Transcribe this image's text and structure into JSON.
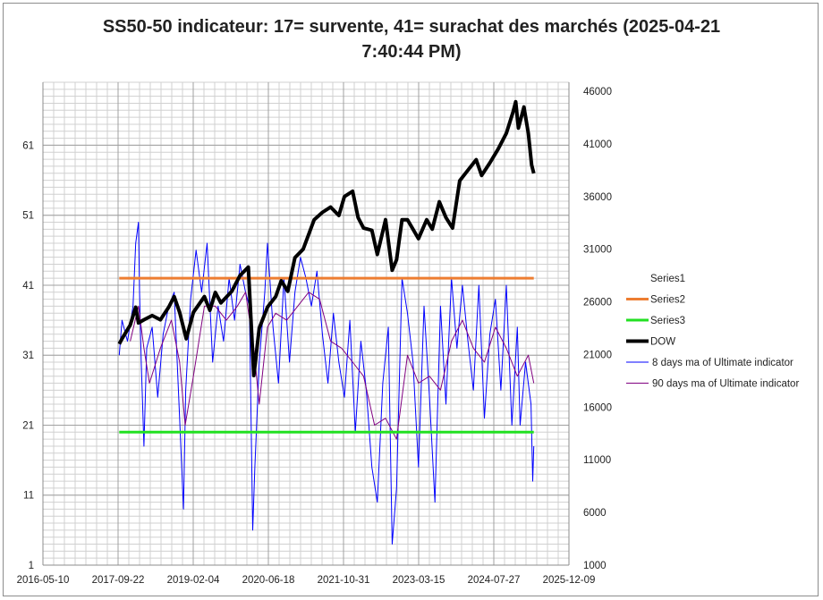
{
  "chart_data": {
    "type": "line",
    "title": "SS50-50 indicateur: 17= survente, 41= surachat des marchés (2025-04-21 7:40:44 PM)",
    "x_unit": "decimal year",
    "xlim": [
      2016.36,
      2025.94
    ],
    "x_tick_labels": [
      "2016-05-10",
      "2017-09-22",
      "2019-02-04",
      "2020-06-18",
      "2021-10-31",
      "2023-03-15",
      "2024-07-27",
      "2025-12-09"
    ],
    "y_left": {
      "ylim": [
        1,
        70
      ],
      "ticks": [
        1,
        11,
        21,
        31,
        41,
        51,
        61
      ]
    },
    "y_right": {
      "ylim": [
        1000,
        46850
      ],
      "ticks": [
        1000,
        6000,
        11000,
        16000,
        21000,
        26000,
        31000,
        36000,
        41000,
        46000
      ]
    },
    "grid": true,
    "legend_placement": "right",
    "series": [
      {
        "name": "Series1",
        "axis": "left",
        "color": "",
        "points": []
      },
      {
        "name": "Series2",
        "axis": "left",
        "color": "#ed7d31",
        "width": 3,
        "points": [
          [
            2017.75,
            42
          ],
          [
            2025.3,
            42
          ]
        ]
      },
      {
        "name": "Series3",
        "axis": "left",
        "color": "#22e022",
        "width": 3,
        "points": [
          [
            2017.75,
            20
          ],
          [
            2025.3,
            20
          ]
        ]
      },
      {
        "name": "DOW",
        "axis": "right",
        "color": "#000000",
        "width": 4,
        "points": [
          [
            2017.75,
            22000
          ],
          [
            2017.8,
            22500
          ],
          [
            2017.95,
            23800
          ],
          [
            2018.05,
            25500
          ],
          [
            2018.1,
            24000
          ],
          [
            2018.2,
            24300
          ],
          [
            2018.35,
            24700
          ],
          [
            2018.5,
            24300
          ],
          [
            2018.65,
            25500
          ],
          [
            2018.75,
            26500
          ],
          [
            2018.85,
            25000
          ],
          [
            2018.97,
            22500
          ],
          [
            2019.1,
            25000
          ],
          [
            2019.3,
            26500
          ],
          [
            2019.4,
            25200
          ],
          [
            2019.5,
            26900
          ],
          [
            2019.6,
            25900
          ],
          [
            2019.8,
            27000
          ],
          [
            2019.95,
            28500
          ],
          [
            2020.1,
            29300
          ],
          [
            2020.2,
            19000
          ],
          [
            2020.3,
            23500
          ],
          [
            2020.45,
            25500
          ],
          [
            2020.6,
            26500
          ],
          [
            2020.7,
            28000
          ],
          [
            2020.82,
            27000
          ],
          [
            2020.95,
            30200
          ],
          [
            2021.1,
            31000
          ],
          [
            2021.3,
            33800
          ],
          [
            2021.45,
            34500
          ],
          [
            2021.6,
            35000
          ],
          [
            2021.75,
            34200
          ],
          [
            2021.85,
            36000
          ],
          [
            2022.0,
            36500
          ],
          [
            2022.1,
            34000
          ],
          [
            2022.2,
            33000
          ],
          [
            2022.35,
            32800
          ],
          [
            2022.45,
            30500
          ],
          [
            2022.6,
            33800
          ],
          [
            2022.72,
            29000
          ],
          [
            2022.8,
            30000
          ],
          [
            2022.9,
            33800
          ],
          [
            2023.0,
            33800
          ],
          [
            2023.2,
            32000
          ],
          [
            2023.35,
            33800
          ],
          [
            2023.45,
            32900
          ],
          [
            2023.58,
            35500
          ],
          [
            2023.7,
            34000
          ],
          [
            2023.82,
            33000
          ],
          [
            2023.95,
            37500
          ],
          [
            2024.1,
            38500
          ],
          [
            2024.25,
            39500
          ],
          [
            2024.35,
            38000
          ],
          [
            2024.5,
            39200
          ],
          [
            2024.65,
            40500
          ],
          [
            2024.8,
            42000
          ],
          [
            2024.92,
            44000
          ],
          [
            2024.97,
            45000
          ],
          [
            2025.02,
            42500
          ],
          [
            2025.12,
            44500
          ],
          [
            2025.2,
            42000
          ],
          [
            2025.26,
            39000
          ],
          [
            2025.3,
            38200
          ]
        ]
      },
      {
        "name": "8 days ma of Ultimate indicator",
        "axis": "left",
        "color": "#0000ff",
        "width": 1,
        "points": [
          [
            2017.75,
            31
          ],
          [
            2017.8,
            36
          ],
          [
            2017.9,
            33
          ],
          [
            2018.0,
            38
          ],
          [
            2018.05,
            47
          ],
          [
            2018.1,
            50
          ],
          [
            2018.12,
            40
          ],
          [
            2018.15,
            30
          ],
          [
            2018.2,
            18
          ],
          [
            2018.25,
            32
          ],
          [
            2018.35,
            35
          ],
          [
            2018.45,
            25
          ],
          [
            2018.55,
            34
          ],
          [
            2018.65,
            38
          ],
          [
            2018.75,
            40
          ],
          [
            2018.85,
            22
          ],
          [
            2018.92,
            9
          ],
          [
            2018.96,
            26
          ],
          [
            2019.05,
            39
          ],
          [
            2019.15,
            46
          ],
          [
            2019.25,
            40
          ],
          [
            2019.35,
            47
          ],
          [
            2019.45,
            30
          ],
          [
            2019.55,
            38
          ],
          [
            2019.65,
            33
          ],
          [
            2019.75,
            42
          ],
          [
            2019.85,
            36
          ],
          [
            2019.95,
            44
          ],
          [
            2020.05,
            40
          ],
          [
            2020.12,
            38
          ],
          [
            2020.18,
            6
          ],
          [
            2020.22,
            15
          ],
          [
            2020.3,
            30
          ],
          [
            2020.4,
            40
          ],
          [
            2020.45,
            47
          ],
          [
            2020.55,
            35
          ],
          [
            2020.65,
            27
          ],
          [
            2020.75,
            42
          ],
          [
            2020.85,
            30
          ],
          [
            2020.95,
            40
          ],
          [
            2021.05,
            45
          ],
          [
            2021.15,
            42
          ],
          [
            2021.25,
            38
          ],
          [
            2021.35,
            43
          ],
          [
            2021.45,
            34
          ],
          [
            2021.55,
            27
          ],
          [
            2021.65,
            37
          ],
          [
            2021.75,
            30
          ],
          [
            2021.85,
            25
          ],
          [
            2021.95,
            36
          ],
          [
            2022.05,
            20
          ],
          [
            2022.15,
            33
          ],
          [
            2022.25,
            26
          ],
          [
            2022.35,
            15
          ],
          [
            2022.45,
            10
          ],
          [
            2022.55,
            27
          ],
          [
            2022.65,
            35
          ],
          [
            2022.72,
            4
          ],
          [
            2022.8,
            12
          ],
          [
            2022.9,
            42
          ],
          [
            2023.0,
            37
          ],
          [
            2023.1,
            30
          ],
          [
            2023.2,
            15
          ],
          [
            2023.3,
            38
          ],
          [
            2023.4,
            25
          ],
          [
            2023.5,
            10
          ],
          [
            2023.6,
            38
          ],
          [
            2023.7,
            24
          ],
          [
            2023.8,
            42
          ],
          [
            2023.9,
            32
          ],
          [
            2024.0,
            41
          ],
          [
            2024.1,
            33
          ],
          [
            2024.2,
            26
          ],
          [
            2024.3,
            41
          ],
          [
            2024.4,
            22
          ],
          [
            2024.5,
            34
          ],
          [
            2024.6,
            39
          ],
          [
            2024.7,
            26
          ],
          [
            2024.8,
            41
          ],
          [
            2024.9,
            21
          ],
          [
            2025.0,
            35
          ],
          [
            2025.05,
            21
          ],
          [
            2025.15,
            30
          ],
          [
            2025.25,
            24
          ],
          [
            2025.28,
            13
          ],
          [
            2025.3,
            18
          ]
        ]
      },
      {
        "name": "90 days ma of Ultimate indicator",
        "axis": "left",
        "color": "#800080",
        "width": 1,
        "points": [
          [
            2017.95,
            33
          ],
          [
            2018.1,
            38
          ],
          [
            2018.2,
            32
          ],
          [
            2018.3,
            27
          ],
          [
            2018.5,
            32
          ],
          [
            2018.7,
            36
          ],
          [
            2018.85,
            30
          ],
          [
            2018.95,
            21
          ],
          [
            2019.1,
            28
          ],
          [
            2019.3,
            38
          ],
          [
            2019.5,
            38
          ],
          [
            2019.7,
            36
          ],
          [
            2019.9,
            38
          ],
          [
            2020.05,
            40
          ],
          [
            2020.2,
            32
          ],
          [
            2020.3,
            24
          ],
          [
            2020.45,
            35
          ],
          [
            2020.6,
            37
          ],
          [
            2020.8,
            36
          ],
          [
            2021.0,
            38
          ],
          [
            2021.2,
            40
          ],
          [
            2021.4,
            39
          ],
          [
            2021.6,
            33
          ],
          [
            2021.8,
            32
          ],
          [
            2022.0,
            30
          ],
          [
            2022.2,
            28
          ],
          [
            2022.4,
            21
          ],
          [
            2022.6,
            22
          ],
          [
            2022.8,
            19
          ],
          [
            2023.0,
            31
          ],
          [
            2023.2,
            27
          ],
          [
            2023.4,
            28
          ],
          [
            2023.6,
            26
          ],
          [
            2023.8,
            33
          ],
          [
            2024.0,
            36
          ],
          [
            2024.2,
            32
          ],
          [
            2024.4,
            30
          ],
          [
            2024.6,
            35
          ],
          [
            2024.8,
            32
          ],
          [
            2025.0,
            28
          ],
          [
            2025.2,
            31
          ],
          [
            2025.3,
            27
          ]
        ]
      }
    ]
  }
}
